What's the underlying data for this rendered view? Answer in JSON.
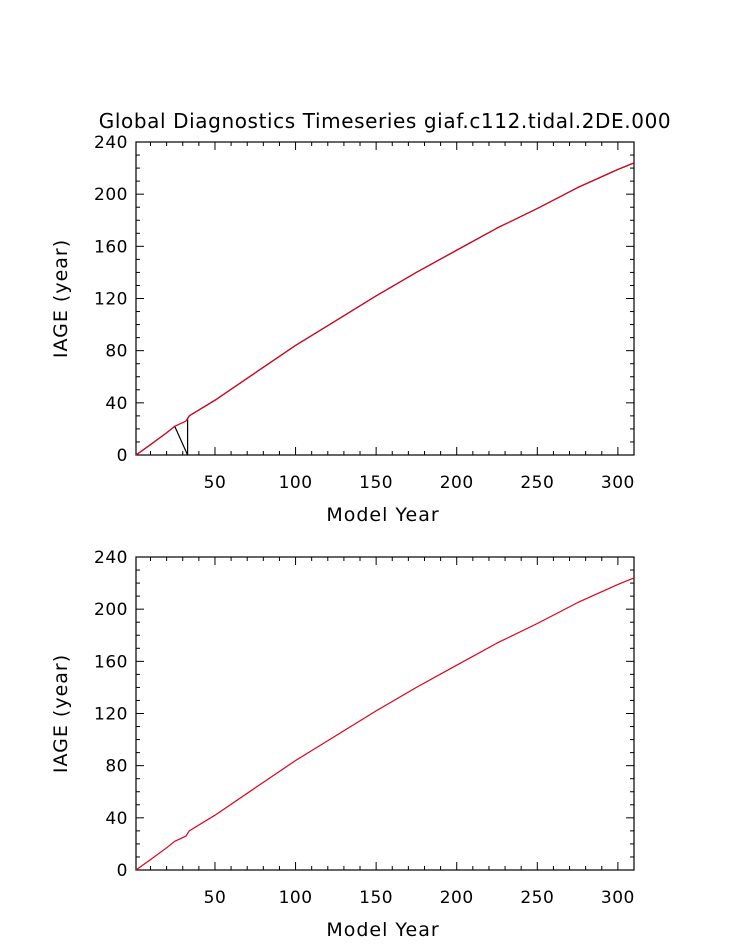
{
  "title": "Global Diagnostics Timeseries giaf.c112.tidal.2DE.000",
  "colors": {
    "primary_series": "#e0001b",
    "secondary_series": "#000000"
  },
  "chart_data": [
    {
      "type": "line",
      "xlabel": "Model Year",
      "ylabel": "IAGE (year)",
      "xlim": [
        1,
        310
      ],
      "ylim": [
        0,
        240
      ],
      "xticks": [
        50,
        100,
        150,
        200,
        250,
        300
      ],
      "yticks": [
        0,
        40,
        80,
        120,
        160,
        200,
        240
      ],
      "series": [
        {
          "color": "#000000",
          "x": [
            1,
            10,
            20,
            25,
            33,
            33,
            34,
            50,
            75,
            100,
            125,
            150,
            175,
            200,
            225,
            250,
            275,
            300,
            310
          ],
          "y": [
            0,
            8,
            17,
            22,
            0,
            28,
            30,
            42,
            63,
            84,
            103,
            122,
            140,
            157,
            174,
            189,
            205,
            219,
            224
          ]
        },
        {
          "color": "#e0001b",
          "x": [
            1,
            10,
            20,
            25,
            32,
            33,
            34,
            50,
            75,
            100,
            125,
            150,
            175,
            200,
            225,
            250,
            275,
            300,
            310
          ],
          "y": [
            0,
            8,
            17,
            22,
            26,
            28,
            30,
            42,
            63,
            84,
            103,
            122,
            140,
            157,
            174,
            189,
            205,
            219,
            224
          ]
        }
      ]
    },
    {
      "type": "line",
      "xlabel": "Model Year",
      "ylabel": "IAGE (year)",
      "xlim": [
        1,
        310
      ],
      "ylim": [
        0,
        240
      ],
      "xticks": [
        50,
        100,
        150,
        200,
        250,
        300
      ],
      "yticks": [
        0,
        40,
        80,
        120,
        160,
        200,
        240
      ],
      "series": [
        {
          "color": "#e0001b",
          "x": [
            1,
            10,
            20,
            25,
            32,
            33,
            34,
            50,
            75,
            100,
            125,
            150,
            175,
            200,
            225,
            250,
            275,
            300,
            310
          ],
          "y": [
            0,
            8,
            17,
            22,
            26,
            28,
            30,
            42,
            63,
            84,
            103,
            122,
            140,
            157,
            174,
            189,
            205,
            219,
            224
          ]
        }
      ]
    }
  ]
}
